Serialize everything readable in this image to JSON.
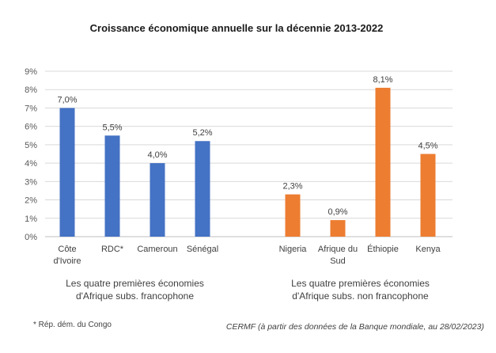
{
  "chart_data": {
    "type": "bar",
    "title": "Croissance économique annuelle sur la décennie 2013-2022",
    "xlabel": "",
    "ylabel": "",
    "ylim": [
      0,
      9
    ],
    "yticks": [
      "0%",
      "1%",
      "2%",
      "3%",
      "4%",
      "5%",
      "6%",
      "7%",
      "8%",
      "9%"
    ],
    "grid": true,
    "legend": "none",
    "groups": [
      {
        "label_lines": [
          "Les quatre premières économies",
          "d'Afrique subs.  francophone"
        ],
        "color": "#4472C4",
        "categories": [
          [
            "Côte",
            "d'Ivoire"
          ],
          [
            "RDC*"
          ],
          [
            "Cameroun"
          ],
          [
            "Sénégal"
          ]
        ],
        "values": [
          7.0,
          5.5,
          4.0,
          5.2
        ],
        "value_labels": [
          "7,0%",
          "5,5%",
          "4,0%",
          "5,2%"
        ]
      },
      {
        "label_lines": [
          "Les quatre premières économies",
          "d'Afrique subs.  non francophone"
        ],
        "color": "#ED7D31",
        "categories": [
          [
            "Nigeria"
          ],
          [
            "Afrique du",
            "Sud"
          ],
          [
            "Éthiopie"
          ],
          [
            "Kenya"
          ]
        ],
        "values": [
          2.3,
          0.9,
          8.1,
          4.5
        ],
        "value_labels": [
          "2,3%",
          "0,9%",
          "8,1%",
          "4,5%"
        ]
      }
    ],
    "footnote": "* Rép. dém. du Congo",
    "source": "CERMF (à partir des données de la Banque mondiale, au 28/02/2023)"
  }
}
